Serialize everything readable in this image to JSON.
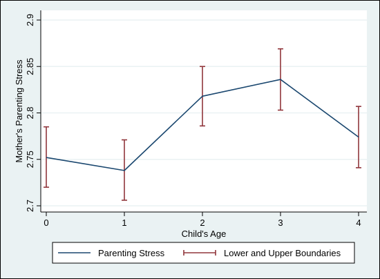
{
  "chart_data": {
    "type": "line",
    "title": "",
    "xlabel": "Child's Age",
    "ylabel": "Mother's Parenting Stress",
    "xlim": [
      0,
      4
    ],
    "ylim": [
      2.7,
      2.9
    ],
    "x_ticks": [
      "0",
      "1",
      "2",
      "3",
      "4"
    ],
    "y_ticks": [
      "2.7",
      "2.75",
      "2.8",
      "2.85",
      "2.9"
    ],
    "grid": true,
    "legend_position": "bottom",
    "x": [
      0,
      1,
      2,
      3,
      4
    ],
    "series": [
      {
        "name": "Parenting Stress",
        "kind": "line",
        "values": [
          2.752,
          2.738,
          2.818,
          2.836,
          2.774
        ]
      },
      {
        "name": "Lower and Upper Boundaries",
        "kind": "errorbar",
        "lower": [
          2.72,
          2.706,
          2.786,
          2.803,
          2.741
        ],
        "upper": [
          2.785,
          2.771,
          2.85,
          2.869,
          2.807
        ]
      }
    ],
    "colors": {
      "background": "#eaf2f3",
      "plot_background": "#ffffff",
      "gridline": "#eaf2f3",
      "line": "#1a476f",
      "errorbar": "#90353b"
    }
  }
}
